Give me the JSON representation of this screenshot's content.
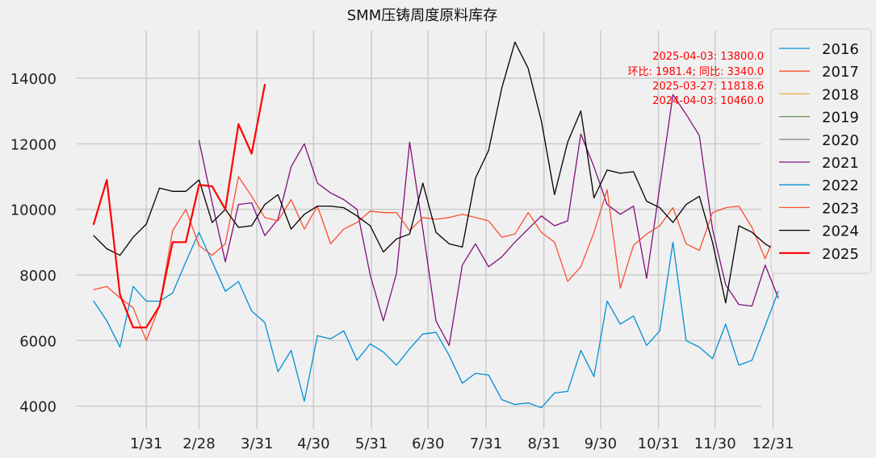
{
  "chart_data": {
    "type": "line",
    "title": "SMM压铸周度原料库存",
    "xlabel": "",
    "ylabel": "",
    "x_domain": [
      1,
      53
    ],
    "ylim": [
      3550,
      15450
    ],
    "grid": true,
    "legend_position": "outside-top-right",
    "x_ticks": [
      {
        "x": 5,
        "label": "1/31"
      },
      {
        "x": 9,
        "label": "2/28"
      },
      {
        "x": 13.4,
        "label": "3/31"
      },
      {
        "x": 17.7,
        "label": "4/30"
      },
      {
        "x": 22.1,
        "label": "5/31"
      },
      {
        "x": 26.4,
        "label": "6/30"
      },
      {
        "x": 30.8,
        "label": "7/31"
      },
      {
        "x": 35.2,
        "label": "8/31"
      },
      {
        "x": 39.5,
        "label": "9/30"
      },
      {
        "x": 43.9,
        "label": "10/31"
      },
      {
        "x": 48.2,
        "label": "11/30"
      },
      {
        "x": 52.6,
        "label": "12/31"
      }
    ],
    "y_ticks": [
      4000,
      6000,
      8000,
      10000,
      12000,
      14000
    ],
    "annotation": [
      "2025-04-03: 13800.0",
      "环比: 1981.4; 同比: 3340.0",
      "2025-03-27: 11818.6",
      "2024-04-03: 10460.0"
    ],
    "series": [
      {
        "name": "2016",
        "color": "#008fd5",
        "width": 1.3,
        "x_start": 1,
        "values": []
      },
      {
        "name": "2017",
        "color": "#fc4f30",
        "width": 1.3,
        "x_start": 1,
        "values": []
      },
      {
        "name": "2018",
        "color": "#e5ae38",
        "width": 1.3,
        "x_start": 1,
        "values": []
      },
      {
        "name": "2019",
        "color": "#6d904f",
        "width": 1.3,
        "x_start": 1,
        "values": []
      },
      {
        "name": "2020",
        "color": "#8b8b8b",
        "width": 1.3,
        "x_start": 1,
        "values": []
      },
      {
        "name": "2021",
        "color": "#810f7c",
        "width": 1.3,
        "x_start": 9,
        "values": [
          12100,
          10200,
          8400,
          10150,
          10200,
          9200,
          9700,
          11300,
          12000,
          10800,
          10500,
          10300,
          10000,
          8000,
          6600,
          8050,
          12050,
          9400,
          6600,
          5850,
          8300,
          8950,
          8250,
          8550,
          9000,
          9400,
          9800,
          9500,
          9650,
          12300,
          11300,
          10150,
          9850,
          10100,
          7900,
          10700,
          13500,
          12900,
          12250,
          9400,
          7700,
          7100,
          7050,
          8300,
          7300
        ]
      },
      {
        "name": "2022",
        "color": "#008fd5",
        "width": 1.3,
        "x_start": 1,
        "values": [
          7200,
          6600,
          5800,
          7650,
          7200,
          7200,
          7450,
          8400,
          9300,
          8400,
          7500,
          7800,
          6900,
          6550,
          5050,
          5700,
          4150,
          6150,
          6050,
          6300,
          5400,
          5900,
          5650,
          5250,
          5750,
          6200,
          6250,
          5550,
          4700,
          5000,
          4950,
          4200,
          4050,
          4100,
          3950,
          4400,
          4450,
          5700,
          4900,
          7200,
          6500,
          6750,
          5850,
          6300,
          9000,
          6000,
          5800,
          5450,
          6500,
          5250,
          5400,
          6450,
          7500
        ]
      },
      {
        "name": "2023",
        "color": "#fc4f30",
        "width": 1.3,
        "x_start": 1,
        "values": [
          7550,
          7650,
          7300,
          7000,
          6000,
          7050,
          9350,
          10000,
          8900,
          8600,
          8950,
          11000,
          10400,
          9750,
          9650,
          10300,
          9400,
          10100,
          8950,
          9400,
          9600,
          9950,
          9900,
          9900,
          9350,
          9750,
          9700,
          9750,
          9850,
          9750,
          9650,
          9150,
          9250,
          9900,
          9300,
          9000,
          7800,
          8250,
          9300,
          10600,
          7600,
          8900,
          9250,
          9500,
          10050,
          8950,
          8750,
          9900,
          10050,
          10100,
          9450,
          8500,
          9450,
          9300
        ]
      },
      {
        "name": "2024",
        "color": "#000000",
        "width": 1.3,
        "x_start": 1,
        "values": [
          9200,
          8800,
          8600,
          9150,
          9550,
          10650,
          10550,
          10550,
          10900,
          9600,
          10000,
          9450,
          9500,
          10150,
          10450,
          9400,
          9850,
          10100,
          10100,
          10050,
          9800,
          9500,
          8700,
          9100,
          9250,
          10800,
          9300,
          8950,
          8850,
          10950,
          11800,
          13700,
          15100,
          14300,
          12700,
          10450,
          12050,
          13000,
          10350,
          11200,
          11100,
          11150,
          10250,
          10050,
          9600,
          10150,
          10400,
          9000,
          7150,
          9500,
          9300,
          8950,
          8700,
          9350
        ]
      },
      {
        "name": "2025",
        "color": "#ff0000",
        "width": 2.2,
        "x_start": 1,
        "values": [
          9550,
          10900,
          7400,
          6400,
          6400,
          7050,
          9000,
          9000,
          10750,
          10700,
          10000,
          12600,
          11700,
          13800
        ]
      }
    ]
  }
}
